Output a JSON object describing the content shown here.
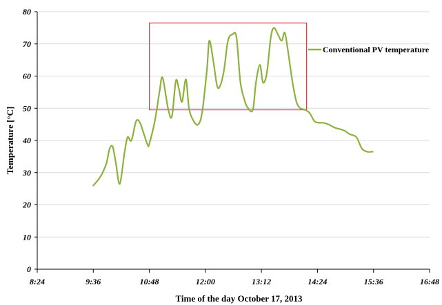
{
  "chart_data": {
    "type": "line",
    "title": "",
    "xlabel": "Time of the day October 17, 2013",
    "ylabel": "Temperature  [°C]",
    "xlim": [
      "8:24",
      "16:48"
    ],
    "ylim": [
      0,
      80
    ],
    "x_ticks": [
      "8:24",
      "9:36",
      "10:48",
      "12:00",
      "13:12",
      "14:24",
      "15:36",
      "16:48"
    ],
    "y_ticks": [
      "0",
      "10",
      "20",
      "30",
      "40",
      "50",
      "60",
      "70",
      "80"
    ],
    "grid": "horizontal",
    "legend_position": "top-right",
    "colors": {
      "line": "#8db13c",
      "box": "#e03a3e",
      "grid": "#d9d9d9"
    },
    "highlight_box": {
      "x": [
        "10:48",
        "14:10"
      ],
      "y": [
        49.5,
        76.5
      ]
    },
    "series": [
      {
        "name": "Conventional PV temperature",
        "x": [
          "9:36",
          "9:43",
          "9:48",
          "9:53",
          "9:57",
          "10:01",
          "10:05",
          "10:10",
          "10:16",
          "10:20",
          "10:25",
          "10:31",
          "10:36",
          "10:41",
          "10:46",
          "10:48",
          "10:55",
          "11:01",
          "11:05",
          "11:12",
          "11:17",
          "11:22",
          "11:26",
          "11:30",
          "11:35",
          "11:39",
          "11:45",
          "11:51",
          "11:56",
          "12:02",
          "12:05",
          "12:10",
          "12:15",
          "12:19",
          "12:24",
          "12:29",
          "12:35",
          "12:40",
          "12:45",
          "12:51",
          "12:55",
          "13:01",
          "13:05",
          "13:10",
          "13:14",
          "13:19",
          "13:24",
          "13:28",
          "13:33",
          "13:38",
          "13:42",
          "13:46",
          "13:52",
          "13:57",
          "14:02",
          "14:08",
          "14:14",
          "14:20",
          "14:26",
          "14:31",
          "14:38",
          "14:46",
          "14:53",
          "14:59",
          "15:05",
          "15:14",
          "15:21",
          "15:28",
          "15:35"
        ],
        "values": [
          26,
          28,
          30,
          33,
          37.5,
          38,
          33,
          26.5,
          36,
          41,
          40,
          46,
          45.5,
          42,
          38.5,
          39,
          46,
          55,
          59.5,
          50,
          47.5,
          58.5,
          56,
          52,
          59,
          50,
          46,
          45,
          49,
          62,
          71,
          65,
          57,
          57,
          62,
          71,
          73,
          72,
          58,
          52,
          50,
          49.5,
          58,
          63.5,
          58,
          61,
          72,
          75,
          73,
          71,
          73.5,
          68,
          58,
          52,
          50,
          49.5,
          48.5,
          46,
          45.5,
          45.5,
          45,
          44,
          43.5,
          43,
          42,
          41,
          37.5,
          36.5,
          36.5
        ]
      }
    ]
  }
}
